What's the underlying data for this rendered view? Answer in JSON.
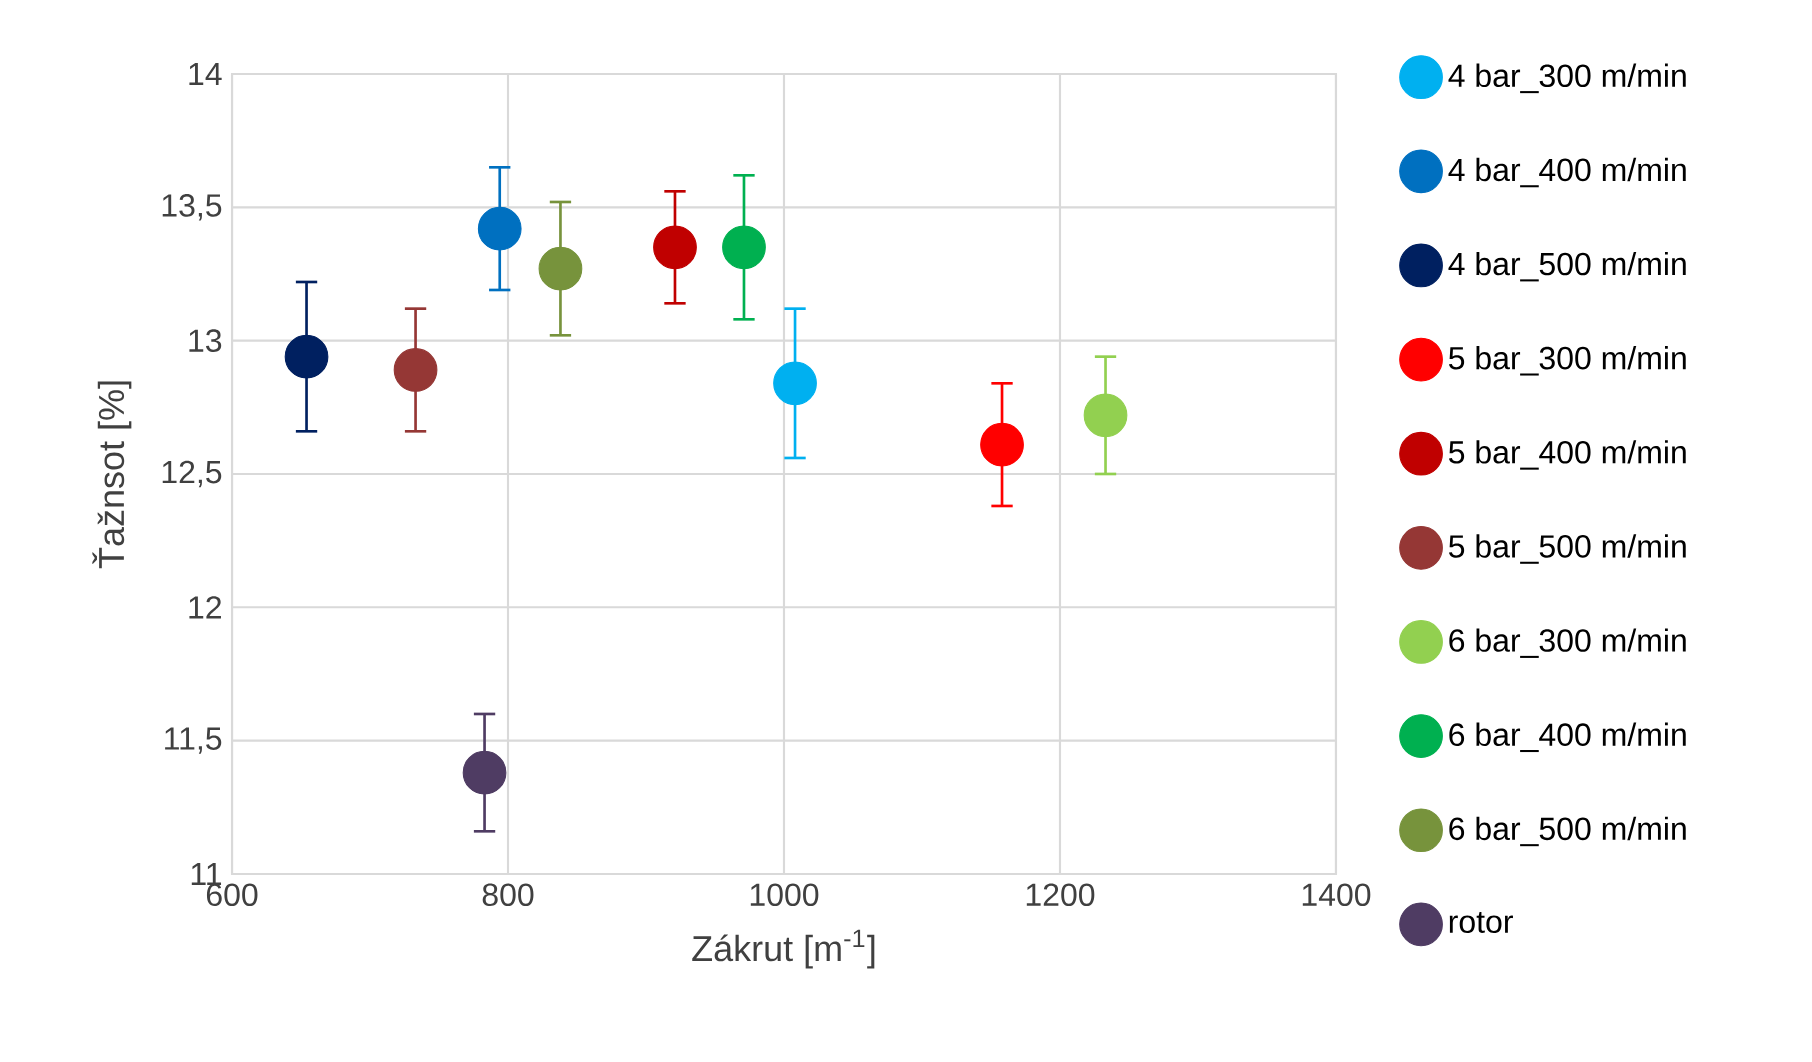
{
  "chart_data": {
    "type": "scatter",
    "xlabel": "Zákrut [m$^{-1}$]",
    "ylabel": "Ťažnsot [%]",
    "xlim": [
      600,
      1400
    ],
    "xticks": [
      600,
      800,
      1000,
      1200,
      1400
    ],
    "ylim": [
      11,
      14
    ],
    "yticks": [
      11,
      {
        "value": 11.5,
        "label": "11,5"
      },
      12,
      {
        "value": 12.5,
        "label": "12,5"
      },
      13,
      {
        "value": 13.5,
        "label": "13,5"
      },
      14
    ],
    "grid": true,
    "legend": "right",
    "marker": "circle",
    "series": [
      {
        "name": "4 bar_300 m/min",
        "color": "#00b0f0",
        "x": [
          1008
        ],
        "values": [
          12.84
        ],
        "errors": [
          0.28
        ]
      },
      {
        "name": "4 bar_400 m/min",
        "color": "#0070c0",
        "x": [
          794
        ],
        "values": [
          13.42
        ],
        "errors": [
          0.23
        ]
      },
      {
        "name": "4 bar_500 m/min",
        "color": "#002060",
        "x": [
          654
        ],
        "values": [
          12.94
        ],
        "errors": [
          0.28
        ]
      },
      {
        "name": "5 bar_300 m/min",
        "color": "#ff0000",
        "x": [
          1158
        ],
        "values": [
          12.61
        ],
        "errors": [
          0.23
        ]
      },
      {
        "name": "5 bar_400 m/min",
        "color": "#c00000",
        "x": [
          921
        ],
        "values": [
          13.35
        ],
        "errors": [
          0.21
        ]
      },
      {
        "name": "5  bar_500 m/min",
        "color": "#953735",
        "x": [
          733
        ],
        "values": [
          12.89
        ],
        "errors": [
          0.23
        ]
      },
      {
        "name": "6 bar_300 m/min",
        "color": "#92d050",
        "x": [
          1233
        ],
        "values": [
          12.72
        ],
        "errors": [
          0.22
        ]
      },
      {
        "name": "6 bar_400 m/min",
        "color": "#00b050",
        "x": [
          971
        ],
        "values": [
          13.35
        ],
        "errors": [
          0.27
        ]
      },
      {
        "name": "6 bar_500 m/min",
        "color": "#77933c",
        "x": [
          838
        ],
        "values": [
          13.27
        ],
        "errors": [
          0.25
        ]
      },
      {
        "name": "rotor",
        "color": "#4f3c63",
        "x": [
          783
        ],
        "values": [
          11.38
        ],
        "errors": [
          0.22
        ]
      }
    ]
  }
}
